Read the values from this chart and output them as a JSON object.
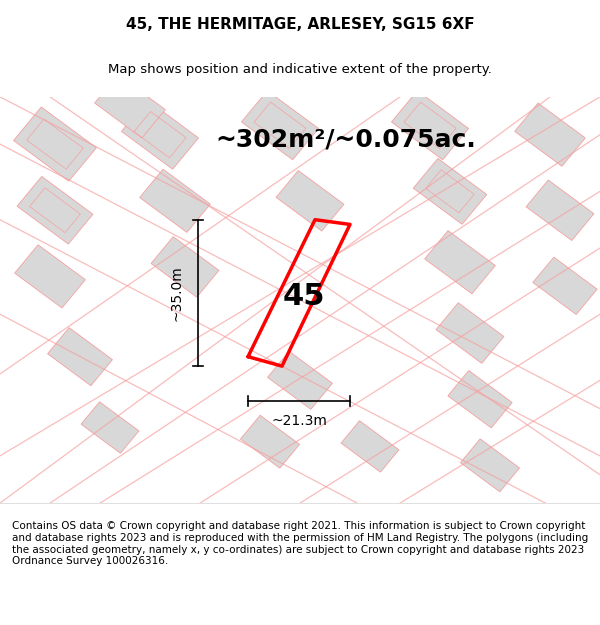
{
  "title": "45, THE HERMITAGE, ARLESEY, SG15 6XF",
  "subtitle": "Map shows position and indicative extent of the property.",
  "area_label": "~302m²/~0.075ac.",
  "number_label": "45",
  "dim_width": "~21.3m",
  "dim_height": "~35.0m",
  "footer": "Contains OS data © Crown copyright and database right 2021. This information is subject to Crown copyright and database rights 2023 and is reproduced with the permission of HM Land Registry. The polygons (including the associated geometry, namely x, y co-ordinates) are subject to Crown copyright and database rights 2023 Ordnance Survey 100026316.",
  "bg_color": "#f0f0f0",
  "map_bg": "#f8f8f8",
  "plot_color": "#ff0000",
  "road_color": "#f5a0a0",
  "building_color": "#d8d8d8",
  "title_fontsize": 11,
  "subtitle_fontsize": 9.5,
  "area_fontsize": 18,
  "number_fontsize": 22,
  "dim_fontsize": 10,
  "footer_fontsize": 7.5
}
